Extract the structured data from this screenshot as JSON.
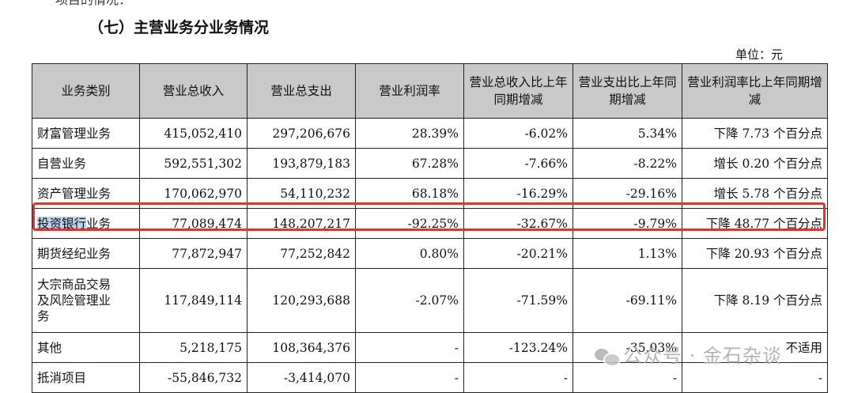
{
  "top_fragment": "项目的情况：",
  "section_title": "（七）主营业务分业务情况",
  "unit": "单位：元",
  "headers": [
    "业务类别",
    "营业总收入",
    "营业总支出",
    "营业利润率",
    "营业总收入比上年同期增减",
    "营业支出比上年同期增减",
    "营业利润率比上年同期增减"
  ],
  "rows": [
    {
      "cat": "财富管理业务",
      "revenue": "415,052,410",
      "expense": "297,206,676",
      "margin": "28.39%",
      "rev_chg": "-6.02%",
      "exp_chg": "5.34%",
      "margin_chg": "下降 7.73 个百分点"
    },
    {
      "cat": "自营业务",
      "revenue": "592,551,302",
      "expense": "193,879,183",
      "margin": "67.28%",
      "rev_chg": "-7.66%",
      "exp_chg": "-8.22%",
      "margin_chg": "增长 0.20 个百分点"
    },
    {
      "cat": "资产管理业务",
      "revenue": "170,062,970",
      "expense": "54,110,232",
      "margin": "68.18%",
      "rev_chg": "-16.29%",
      "exp_chg": "-29.16%",
      "margin_chg": "增长 5.78 个百分点"
    },
    {
      "cat_highlight": "投资银行",
      "cat_rest": "业务",
      "revenue": "77,089,474",
      "expense": "148,207,217",
      "margin": "-92.25%",
      "rev_chg": "-32.67%",
      "exp_chg": "-9.79%",
      "margin_chg": "下降 48.77 个百分点"
    },
    {
      "cat": "期货经纪业务",
      "revenue": "77,872,947",
      "expense": "77,252,842",
      "margin": "0.80%",
      "rev_chg": "-20.21%",
      "exp_chg": "1.13%",
      "margin_chg": "下降 20.93 个百分点"
    },
    {
      "cat_lines": [
        "大宗商品交易",
        "及风险管理业",
        "务"
      ],
      "revenue": "117,849,114",
      "expense": "120,293,688",
      "margin": "-2.07%",
      "rev_chg": "-71.59%",
      "exp_chg": "-69.11%",
      "margin_chg": "下降 8.19 个百分点"
    },
    {
      "cat": "其他",
      "revenue": "5,218,175",
      "expense": "108,364,376",
      "margin": "-",
      "rev_chg": "-123.24%",
      "exp_chg": "-35.03%",
      "margin_chg": "不适用"
    },
    {
      "cat": "抵消项目",
      "revenue": "-55,846,732",
      "expense": "-3,414,070",
      "margin": "-",
      "rev_chg": "-",
      "exp_chg": "-",
      "margin_chg": "-"
    }
  ],
  "watermark": {
    "icon": "wechat-icon",
    "text": "公众号 · 金石杂谈"
  }
}
